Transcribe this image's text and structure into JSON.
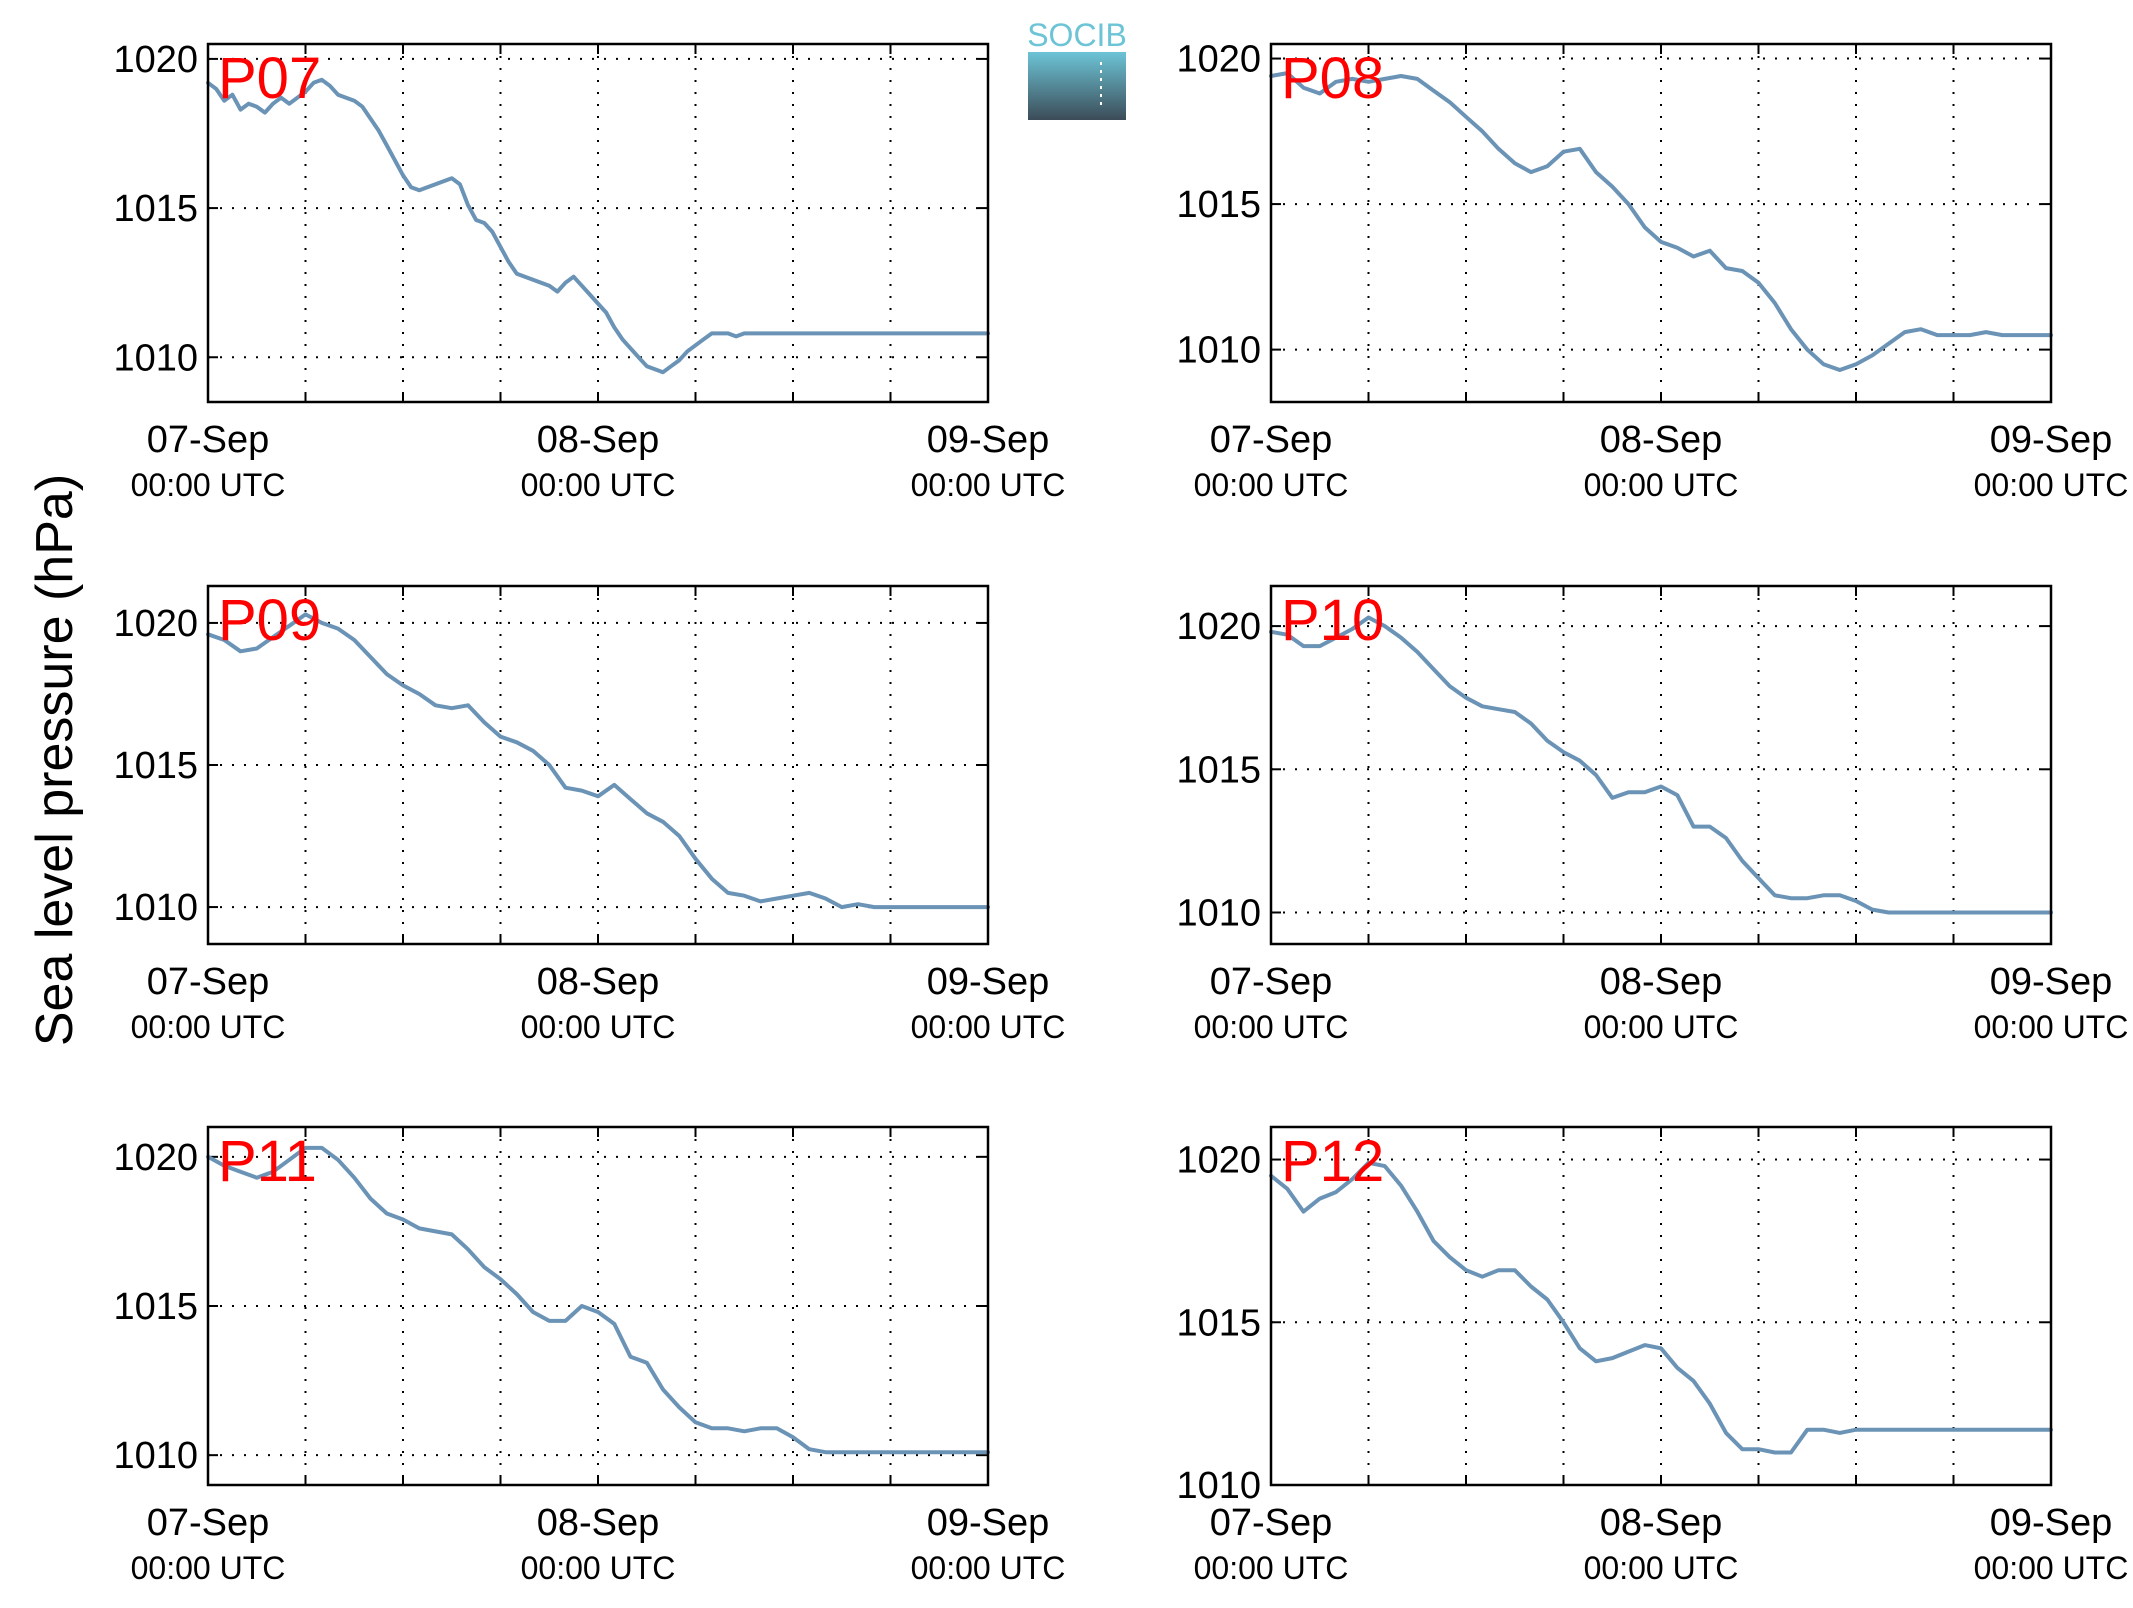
{
  "figure": {
    "ylabel": "Sea level pressure (hPa)",
    "logo_text": "SOCIB",
    "colors": {
      "line": "#6a93b6",
      "panel_label": "#ff0000",
      "grid": "#000000",
      "logo_top": "#6cc4d6",
      "logo_bottom": "#3c4c58"
    }
  },
  "chart_data": [
    {
      "type": "line",
      "title": "P07",
      "xlim": [
        0,
        48
      ],
      "ylim": [
        1008.5,
        1020.5
      ],
      "yticks": [
        1010,
        1015,
        1020
      ],
      "xticks": [
        0,
        24,
        48
      ],
      "xtick_labels": [
        [
          "07-Sep",
          "00:00 UTC"
        ],
        [
          "08-Sep",
          "00:00 UTC"
        ],
        [
          "09-Sep",
          "00:00 UTC"
        ]
      ],
      "grid": true,
      "x": [
        0,
        0.5,
        1,
        1.5,
        2,
        2.5,
        3,
        3.5,
        4,
        4.5,
        5,
        5.5,
        6,
        6.5,
        7,
        7.5,
        8,
        8.5,
        9,
        9.5,
        10,
        10.5,
        11,
        11.5,
        12,
        12.5,
        13,
        13.5,
        14,
        14.5,
        15,
        15.5,
        16,
        16.5,
        17,
        17.5,
        18,
        18.5,
        19,
        19.5,
        20,
        20.5,
        21,
        21.5,
        22,
        22.5,
        23,
        23.5,
        24,
        24.5,
        25,
        25.5,
        26,
        26.5,
        27,
        27.5,
        28,
        28.5,
        29,
        29.5,
        30,
        30.5,
        31,
        31.5,
        32,
        32.5,
        33,
        33.5,
        34,
        34.5,
        35,
        35.5,
        36,
        36.5,
        37,
        37.5,
        38,
        38.5,
        39,
        39.5,
        40,
        40.5,
        41,
        41.5,
        42,
        42.5,
        43,
        43.5,
        44,
        44.5,
        45,
        45.5,
        46,
        46.5,
        47,
        47.5,
        48
      ],
      "y": [
        1019.2,
        1019.0,
        1018.6,
        1018.8,
        1018.3,
        1018.5,
        1018.4,
        1018.2,
        1018.5,
        1018.7,
        1018.5,
        1018.7,
        1018.9,
        1019.2,
        1019.3,
        1019.1,
        1018.8,
        1018.7,
        1018.6,
        1018.4,
        1018.0,
        1017.6,
        1017.1,
        1016.6,
        1016.1,
        1015.7,
        1015.6,
        1015.7,
        1015.8,
        1015.9,
        1016.0,
        1015.8,
        1015.1,
        1014.6,
        1014.5,
        1014.2,
        1013.7,
        1013.2,
        1012.8,
        1012.7,
        1012.6,
        1012.5,
        1012.4,
        1012.2,
        1012.5,
        1012.7,
        1012.4,
        1012.1,
        1011.8,
        1011.5,
        1011.0,
        1010.6,
        1010.3,
        1010.0,
        1009.7,
        1009.6,
        1009.5,
        1009.7,
        1009.9,
        1010.2,
        1010.4,
        1010.6,
        1010.8,
        1010.8,
        1010.8,
        1010.7,
        1010.8,
        1010.8,
        1010.8,
        1010.8,
        1010.8,
        1010.8,
        1010.8,
        1010.8,
        1010.8,
        1010.8,
        1010.8,
        1010.8,
        1010.8,
        1010.8,
        1010.8,
        1010.8,
        1010.8,
        1010.8,
        1010.8,
        1010.8,
        1010.8,
        1010.8,
        1010.8,
        1010.8,
        1010.8,
        1010.8,
        1010.8,
        1010.8,
        1010.8,
        1010.8,
        1010.8
      ]
    },
    {
      "type": "line",
      "title": "P08",
      "xlim": [
        0,
        48
      ],
      "ylim": [
        1008.2,
        1020.5
      ],
      "yticks": [
        1010,
        1015,
        1020
      ],
      "xticks": [
        0,
        24,
        48
      ],
      "xtick_labels": [
        [
          "07-Sep",
          "00:00 UTC"
        ],
        [
          "08-Sep",
          "00:00 UTC"
        ],
        [
          "09-Sep",
          "00:00 UTC"
        ]
      ],
      "grid": true,
      "x": [
        0,
        1,
        2,
        3,
        4,
        5,
        6,
        7,
        8,
        9,
        10,
        11,
        12,
        13,
        14,
        15,
        16,
        17,
        18,
        19,
        20,
        21,
        22,
        23,
        24,
        25,
        26,
        27,
        28,
        29,
        30,
        31,
        32,
        33,
        34,
        35,
        36,
        37,
        38,
        39,
        40,
        41,
        42,
        43,
        44,
        45,
        46,
        47,
        48
      ],
      "y": [
        1019.4,
        1019.5,
        1019.0,
        1018.8,
        1019.2,
        1019.3,
        1019.2,
        1019.3,
        1019.4,
        1019.3,
        1018.9,
        1018.5,
        1018.0,
        1017.5,
        1016.9,
        1016.4,
        1016.1,
        1016.3,
        1016.8,
        1016.9,
        1016.1,
        1015.6,
        1015.0,
        1014.2,
        1013.7,
        1013.5,
        1013.2,
        1013.4,
        1012.8,
        1012.7,
        1012.3,
        1011.6,
        1010.7,
        1010.0,
        1009.5,
        1009.3,
        1009.5,
        1009.8,
        1010.2,
        1010.6,
        1010.7,
        1010.5,
        1010.5,
        1010.5,
        1010.6,
        1010.5,
        1010.5,
        1010.5,
        1010.5
      ]
    },
    {
      "type": "line",
      "title": "P09",
      "xlim": [
        0,
        48
      ],
      "ylim": [
        1008.7,
        1021.3
      ],
      "yticks": [
        1010,
        1015,
        1020
      ],
      "xticks": [
        0,
        24,
        48
      ],
      "xtick_labels": [
        [
          "07-Sep",
          "00:00 UTC"
        ],
        [
          "08-Sep",
          "00:00 UTC"
        ],
        [
          "09-Sep",
          "00:00 UTC"
        ]
      ],
      "grid": true,
      "x": [
        0,
        1,
        2,
        3,
        4,
        5,
        6,
        7,
        8,
        9,
        10,
        11,
        12,
        13,
        14,
        15,
        16,
        17,
        18,
        19,
        20,
        21,
        22,
        23,
        24,
        25,
        26,
        27,
        28,
        29,
        30,
        31,
        32,
        33,
        34,
        35,
        36,
        37,
        38,
        39,
        40,
        41,
        42,
        43,
        44,
        45,
        46,
        47,
        48
      ],
      "y": [
        1019.6,
        1019.4,
        1019.0,
        1019.1,
        1019.5,
        1019.9,
        1020.3,
        1020.0,
        1019.8,
        1019.4,
        1018.8,
        1018.2,
        1017.8,
        1017.5,
        1017.1,
        1017.0,
        1017.1,
        1016.5,
        1016.0,
        1015.8,
        1015.5,
        1015.0,
        1014.2,
        1014.1,
        1013.9,
        1014.3,
        1013.8,
        1013.3,
        1013.0,
        1012.5,
        1011.7,
        1011.0,
        1010.5,
        1010.4,
        1010.2,
        1010.3,
        1010.4,
        1010.5,
        1010.3,
        1010.0,
        1010.1,
        1010.0,
        1010.0,
        1010.0,
        1010.0,
        1010.0,
        1010.0,
        1010.0,
        1010.0
      ]
    },
    {
      "type": "line",
      "title": "P10",
      "xlim": [
        0,
        48
      ],
      "ylim": [
        1008.9,
        1021.4
      ],
      "yticks": [
        1010,
        1015,
        1020
      ],
      "xticks": [
        0,
        24,
        48
      ],
      "xtick_labels": [
        [
          "07-Sep",
          "00:00 UTC"
        ],
        [
          "08-Sep",
          "00:00 UTC"
        ],
        [
          "09-Sep",
          "00:00 UTC"
        ]
      ],
      "grid": true,
      "x": [
        0,
        1,
        2,
        3,
        4,
        5,
        6,
        7,
        8,
        9,
        10,
        11,
        12,
        13,
        14,
        15,
        16,
        17,
        18,
        19,
        20,
        21,
        22,
        23,
        24,
        25,
        26,
        27,
        28,
        29,
        30,
        31,
        32,
        33,
        34,
        35,
        36,
        37,
        38,
        39,
        40,
        41,
        42,
        43,
        44,
        45,
        46,
        47,
        48
      ],
      "y": [
        1019.8,
        1019.7,
        1019.3,
        1019.3,
        1019.6,
        1019.9,
        1020.3,
        1020.0,
        1019.6,
        1019.1,
        1018.5,
        1017.9,
        1017.5,
        1017.2,
        1017.1,
        1017.0,
        1016.6,
        1016.0,
        1015.6,
        1015.3,
        1014.8,
        1014.0,
        1014.2,
        1014.2,
        1014.4,
        1014.1,
        1013.0,
        1013.0,
        1012.6,
        1011.8,
        1011.2,
        1010.6,
        1010.5,
        1010.5,
        1010.6,
        1010.6,
        1010.4,
        1010.1,
        1010.0,
        1010.0,
        1010.0,
        1010.0,
        1010.0,
        1010.0,
        1010.0,
        1010.0,
        1010.0,
        1010.0,
        1010.0
      ]
    },
    {
      "type": "line",
      "title": "P11",
      "xlim": [
        0,
        48
      ],
      "ylim": [
        1009.0,
        1021.0
      ],
      "yticks": [
        1010,
        1015,
        1020
      ],
      "xticks": [
        0,
        24,
        48
      ],
      "xtick_labels": [
        [
          "07-Sep",
          "00:00 UTC"
        ],
        [
          "08-Sep",
          "00:00 UTC"
        ],
        [
          "09-Sep",
          "00:00 UTC"
        ]
      ],
      "grid": true,
      "x": [
        0,
        1,
        2,
        3,
        4,
        5,
        6,
        7,
        8,
        9,
        10,
        11,
        12,
        13,
        14,
        15,
        16,
        17,
        18,
        19,
        20,
        21,
        22,
        23,
        24,
        25,
        26,
        27,
        28,
        29,
        30,
        31,
        32,
        33,
        34,
        35,
        36,
        37,
        38,
        39,
        40,
        41,
        42,
        43,
        44,
        45,
        46,
        47,
        48
      ],
      "y": [
        1020.0,
        1019.7,
        1019.5,
        1019.3,
        1019.5,
        1019.9,
        1020.3,
        1020.3,
        1019.9,
        1019.3,
        1018.6,
        1018.1,
        1017.9,
        1017.6,
        1017.5,
        1017.4,
        1016.9,
        1016.3,
        1015.9,
        1015.4,
        1014.8,
        1014.5,
        1014.5,
        1015.0,
        1014.8,
        1014.4,
        1013.3,
        1013.1,
        1012.2,
        1011.6,
        1011.1,
        1010.9,
        1010.9,
        1010.8,
        1010.9,
        1010.9,
        1010.6,
        1010.2,
        1010.1,
        1010.1,
        1010.1,
        1010.1,
        1010.1,
        1010.1,
        1010.1,
        1010.1,
        1010.1,
        1010.1,
        1010.1
      ]
    },
    {
      "type": "line",
      "title": "P12",
      "xlim": [
        0,
        48
      ],
      "ylim": [
        1010.0,
        1021.0
      ],
      "yticks": [
        1010,
        1015,
        1020
      ],
      "xticks": [
        0,
        24,
        48
      ],
      "xtick_labels": [
        [
          "07-Sep",
          "00:00 UTC"
        ],
        [
          "08-Sep",
          "00:00 UTC"
        ],
        [
          "09-Sep",
          "00:00 UTC"
        ]
      ],
      "grid": true,
      "x": [
        0,
        1,
        2,
        3,
        4,
        5,
        6,
        7,
        8,
        9,
        10,
        11,
        12,
        13,
        14,
        15,
        16,
        17,
        18,
        19,
        20,
        21,
        22,
        23,
        24,
        25,
        26,
        27,
        28,
        29,
        30,
        31,
        32,
        33,
        34,
        35,
        36,
        37,
        38,
        39,
        40,
        41,
        42,
        43,
        44,
        45,
        46,
        47,
        48
      ],
      "y": [
        1019.5,
        1019.1,
        1018.4,
        1018.8,
        1019.0,
        1019.4,
        1019.9,
        1019.8,
        1019.2,
        1018.4,
        1017.5,
        1017.0,
        1016.6,
        1016.4,
        1016.6,
        1016.6,
        1016.1,
        1015.7,
        1015.0,
        1014.2,
        1013.8,
        1013.9,
        1014.1,
        1014.3,
        1014.2,
        1013.6,
        1013.2,
        1012.5,
        1011.6,
        1011.1,
        1011.1,
        1011.0,
        1011.0,
        1011.7,
        1011.7,
        1011.6,
        1011.7,
        1011.7,
        1011.7,
        1011.7,
        1011.7,
        1011.7,
        1011.7,
        1011.7,
        1011.7,
        1011.7,
        1011.7,
        1011.7,
        1011.7
      ]
    }
  ]
}
